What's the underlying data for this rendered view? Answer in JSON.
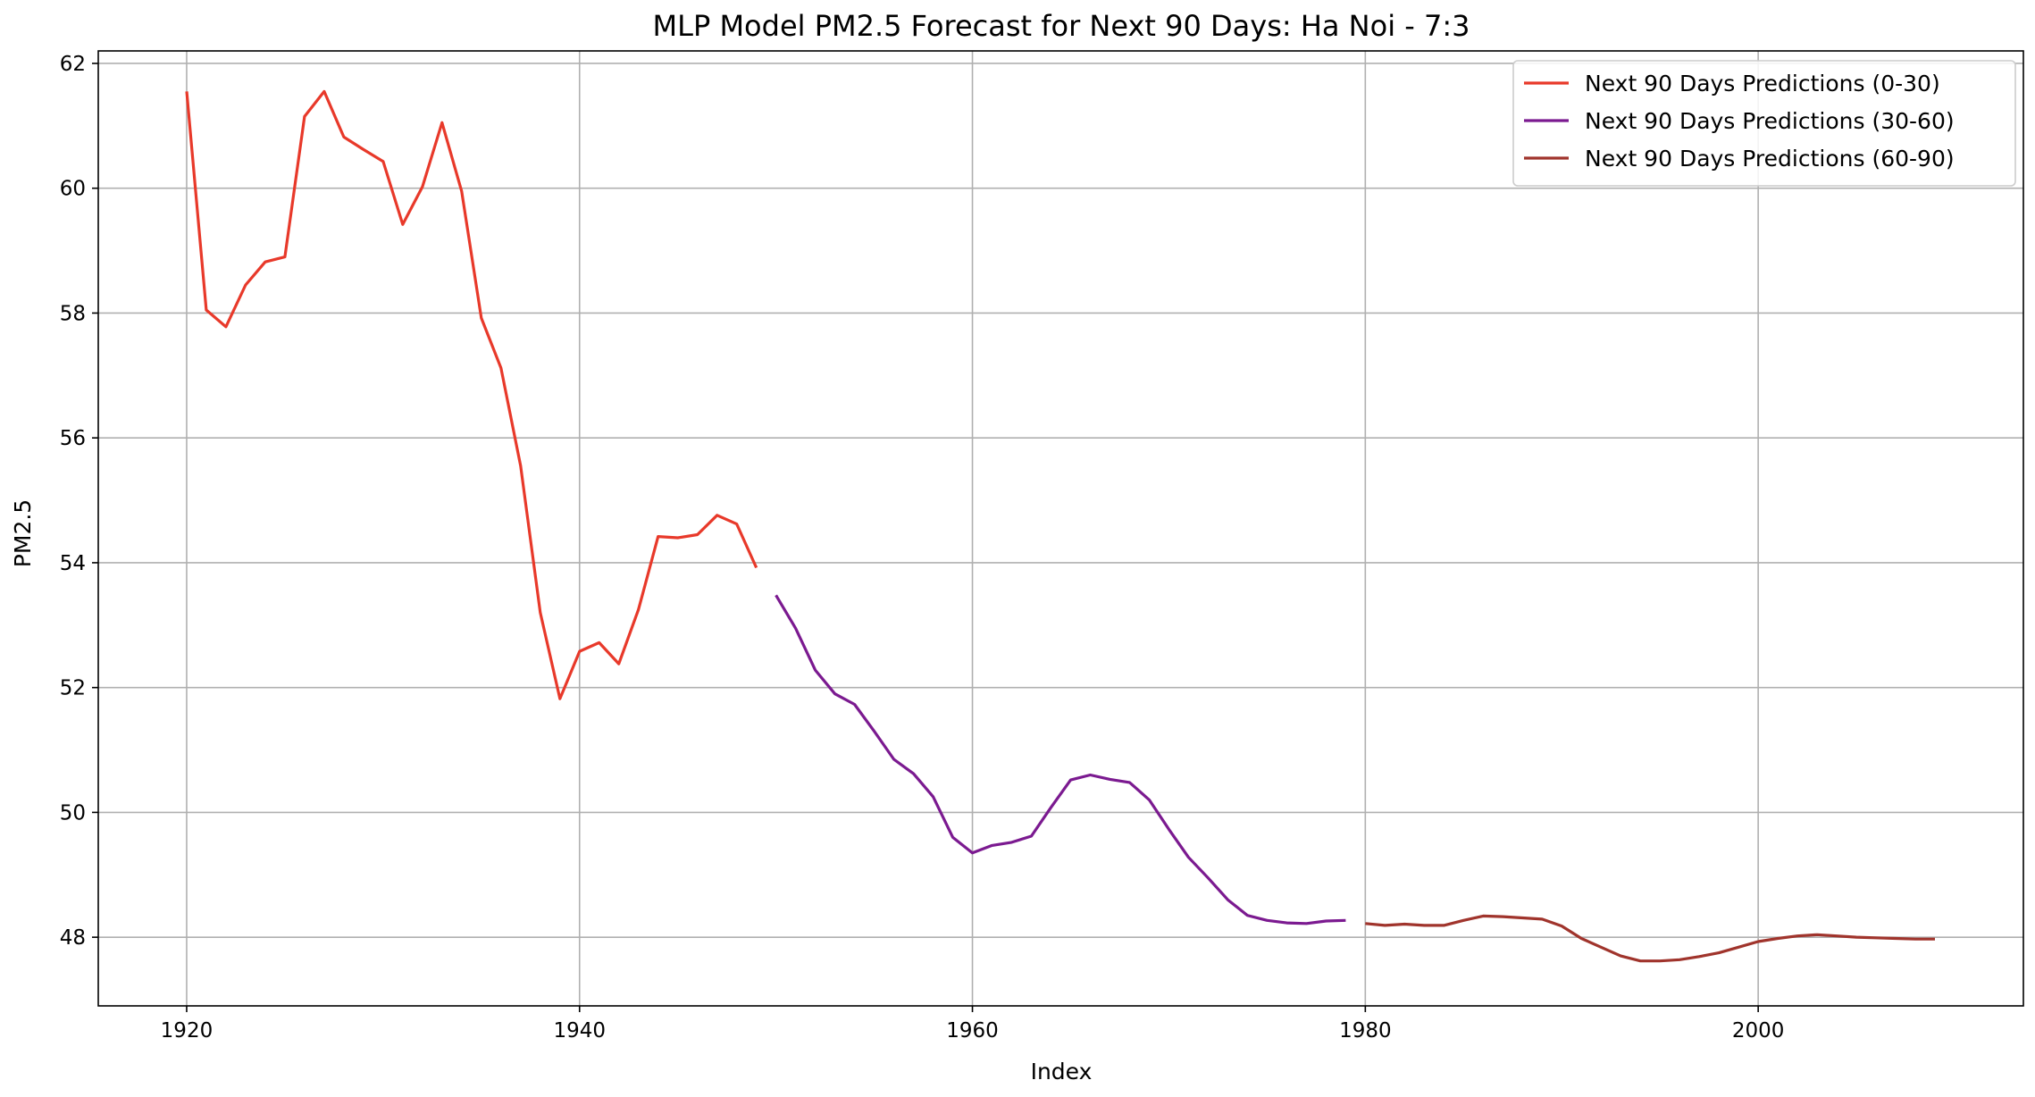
{
  "chart_data": {
    "type": "line",
    "title": "MLP Model PM2.5 Forecast for Next 90 Days: Ha Noi - 7:3",
    "xlabel": "Index",
    "ylabel": "PM2.5",
    "xlim": [
      1915.5,
      2013.5
    ],
    "ylim": [
      46.9,
      62.2
    ],
    "xticks": [
      1920,
      1940,
      1960,
      1980,
      2000
    ],
    "yticks": [
      48,
      50,
      52,
      54,
      56,
      58,
      60,
      62
    ],
    "grid": true,
    "legend_position": "top-right",
    "series": [
      {
        "name": "Next 90 Days Predictions (0-30)",
        "color": "#e8392a",
        "x": [
          1920,
          1921,
          1922,
          1923,
          1924,
          1925,
          1926,
          1927,
          1928,
          1929,
          1930,
          1931,
          1932,
          1933,
          1934,
          1935,
          1936,
          1937,
          1938,
          1939,
          1940,
          1941,
          1942,
          1943,
          1944,
          1945,
          1946,
          1947,
          1948,
          1949
        ],
        "values": [
          61.55,
          58.05,
          57.78,
          58.45,
          58.82,
          58.9,
          61.15,
          61.55,
          60.82,
          60.62,
          60.43,
          59.42,
          60.02,
          61.05,
          59.95,
          57.92,
          57.12,
          55.55,
          53.2,
          51.82,
          52.58,
          52.72,
          52.38,
          53.25,
          54.42,
          54.4,
          54.45,
          54.76,
          54.62,
          53.92
        ]
      },
      {
        "name": "Next 90 Days Predictions (30-60)",
        "color": "#7b1a90",
        "x": [
          1950,
          1951,
          1952,
          1953,
          1954,
          1955,
          1956,
          1957,
          1958,
          1959,
          1960,
          1961,
          1962,
          1963,
          1964,
          1965,
          1966,
          1967,
          1968,
          1969,
          1970,
          1971,
          1972,
          1973,
          1974,
          1975,
          1976,
          1977,
          1978,
          1979
        ],
        "values": [
          53.48,
          52.95,
          52.28,
          51.9,
          51.73,
          51.3,
          50.85,
          50.62,
          50.25,
          49.6,
          49.35,
          49.47,
          49.52,
          49.62,
          50.08,
          50.52,
          50.6,
          50.53,
          50.48,
          50.2,
          49.73,
          49.28,
          48.95,
          48.6,
          48.35,
          48.27,
          48.23,
          48.22,
          48.26,
          48.27
        ]
      },
      {
        "name": "Next 90 Days Predictions (60-90)",
        "color": "#a0342c",
        "x": [
          1980,
          1981,
          1982,
          1983,
          1984,
          1985,
          1986,
          1987,
          1988,
          1989,
          1990,
          1991,
          1992,
          1993,
          1994,
          1995,
          1996,
          1997,
          1998,
          1999,
          2000,
          2001,
          2002,
          2003,
          2004,
          2005,
          2006,
          2007,
          2008,
          2009
        ],
        "values": [
          48.22,
          48.19,
          48.21,
          48.19,
          48.19,
          48.27,
          48.34,
          48.33,
          48.31,
          48.29,
          48.18,
          47.98,
          47.84,
          47.7,
          47.62,
          47.62,
          47.64,
          47.69,
          47.75,
          47.84,
          47.93,
          47.98,
          48.02,
          48.04,
          48.02,
          48.0,
          47.99,
          47.98,
          47.97,
          47.97
        ]
      }
    ]
  }
}
